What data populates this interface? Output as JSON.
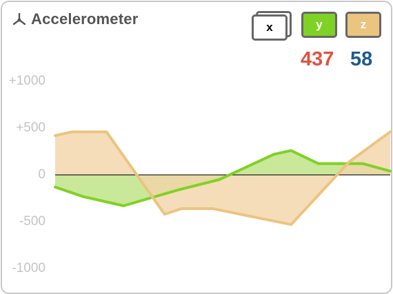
{
  "widget": {
    "title": "Accelerometer",
    "icon": "axes-icon",
    "buttons": [
      {
        "label": "x",
        "color": "#ffffff"
      },
      {
        "label": "y",
        "color": "#80d125"
      },
      {
        "label": "z",
        "color": "#ebc47f"
      }
    ],
    "readouts": {
      "y": "437",
      "z": "58"
    }
  },
  "chart_data": {
    "type": "area",
    "ylim": [
      -1000,
      1000
    ],
    "y_ticks": [
      "+1000",
      "+500",
      "0",
      "-500",
      "-1000"
    ],
    "grid": false,
    "series": [
      {
        "key": "y",
        "color": "#80d125",
        "fill": "#c3e58f",
        "points": [
          [
            0,
            -130
          ],
          [
            40,
            -230
          ],
          [
            100,
            -330
          ],
          [
            180,
            -160
          ],
          [
            240,
            -50
          ],
          [
            320,
            220
          ],
          [
            345,
            260
          ],
          [
            385,
            120
          ],
          [
            450,
            120
          ],
          [
            490,
            40
          ]
        ]
      },
      {
        "key": "z",
        "color": "#ebc47f",
        "fill": "#f3d5a9",
        "points": [
          [
            0,
            420
          ],
          [
            25,
            460
          ],
          [
            75,
            460
          ],
          [
            160,
            -420
          ],
          [
            185,
            -360
          ],
          [
            230,
            -360
          ],
          [
            345,
            -530
          ],
          [
            430,
            140
          ],
          [
            490,
            460
          ]
        ]
      }
    ]
  }
}
